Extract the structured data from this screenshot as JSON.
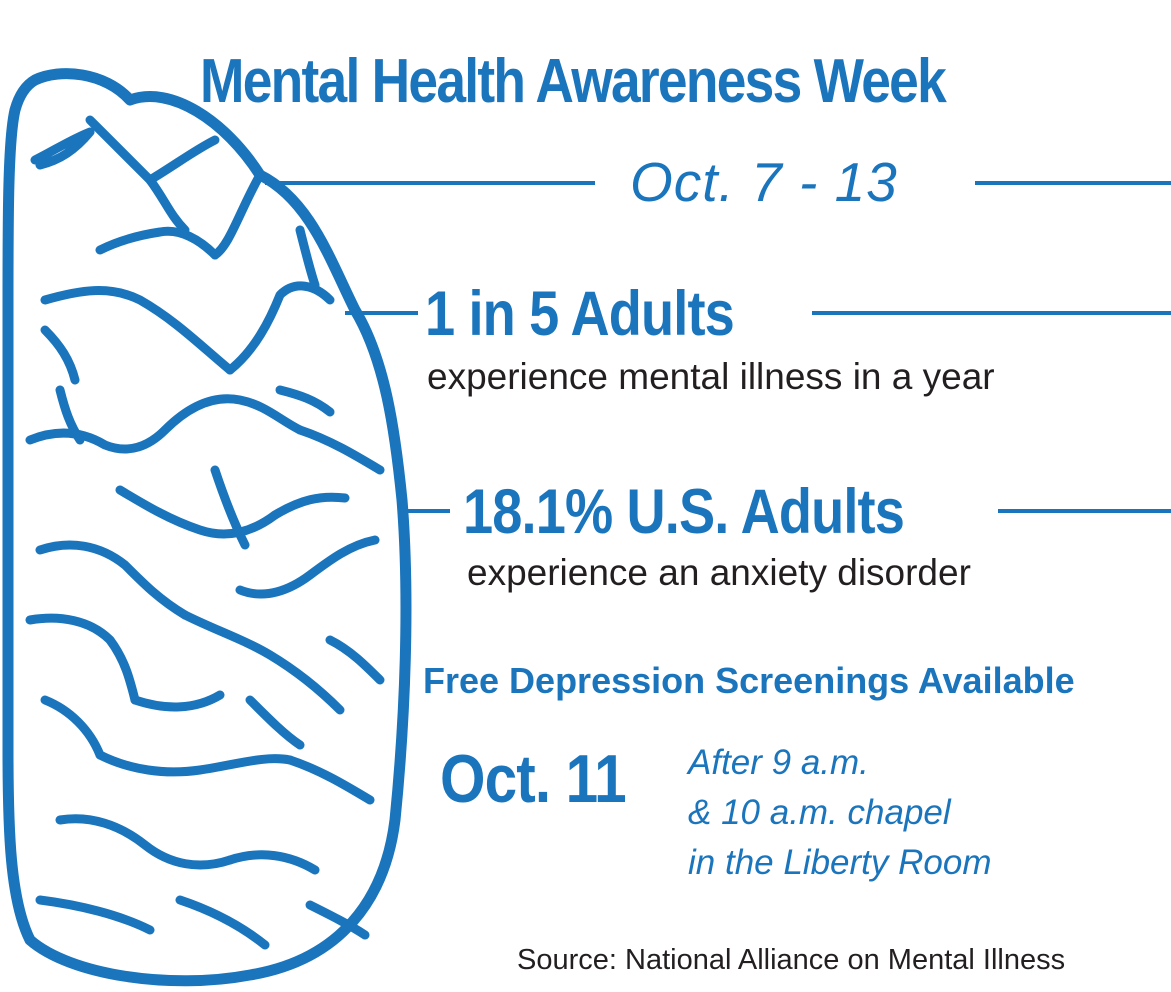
{
  "header": {
    "title": "Mental Health Awareness Week",
    "dates": "Oct. 7 - 13"
  },
  "stats": [
    {
      "headline": "1 in 5 Adults",
      "detail": "experience mental illness in a year"
    },
    {
      "headline": "18.1% U.S. Adults",
      "detail": "experience an anxiety disorder"
    }
  ],
  "screening": {
    "title": "Free Depression Screenings Available",
    "date": "Oct. 11",
    "details": [
      "After 9 a.m.",
      "& 10 a.m. chapel",
      "in the Liberty Room"
    ]
  },
  "footer": {
    "source": "Source: National Alliance on Mental Illness"
  },
  "illustration": {
    "icon": "brain-icon"
  },
  "colors": {
    "accent": "#1a75bc",
    "text": "#231f20",
    "background": "#ffffff"
  }
}
